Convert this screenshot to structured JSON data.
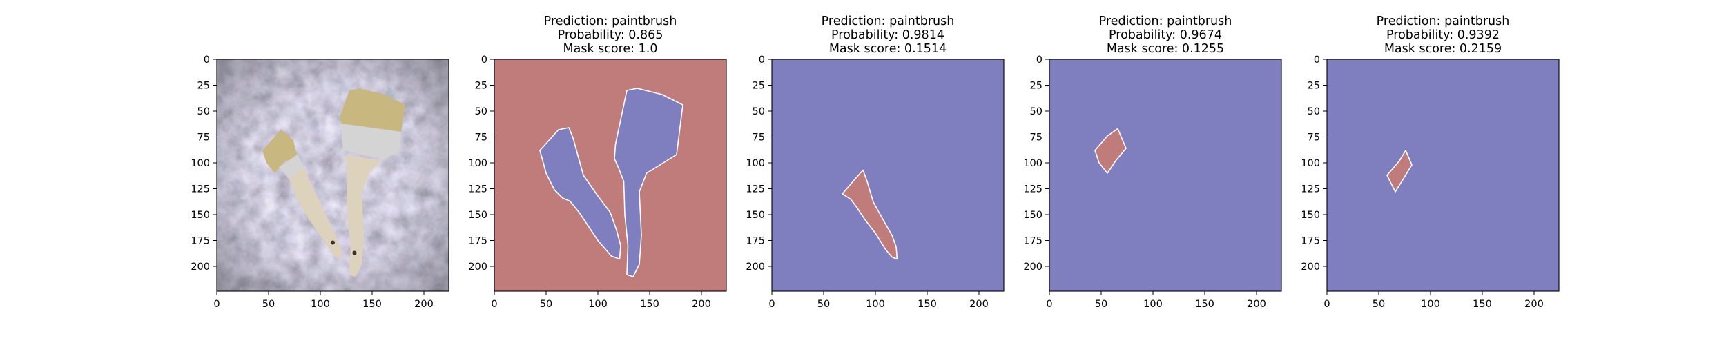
{
  "colors": {
    "mask_fg": "#c07b7b",
    "mask_bg": "#7f7fbf",
    "edge": "#ffffff",
    "axis": "#000000",
    "photo_bg": "#5b5562",
    "bristle": "#c8b880",
    "ferrule": "#d4d4d4",
    "handle": "#ddd2bc"
  },
  "chart_data": [
    {
      "type": "image",
      "title_lines": [],
      "xlim": [
        0,
        224
      ],
      "ylim": [
        224,
        0
      ],
      "xticks": [
        0,
        50,
        100,
        150,
        200
      ],
      "yticks": [
        0,
        25,
        50,
        75,
        100,
        125,
        150,
        175,
        200
      ],
      "content": "input photo of two paintbrushes on marble"
    },
    {
      "type": "mask",
      "title_lines": [
        "Prediction: paintbrush",
        "Probability: 0.865",
        "Mask score: 1.0"
      ],
      "xlim": [
        0,
        224
      ],
      "ylim": [
        224,
        0
      ],
      "xticks": [
        0,
        50,
        100,
        150,
        200
      ],
      "yticks": [
        0,
        25,
        50,
        75,
        100,
        125,
        150,
        175,
        200
      ],
      "background_class": "foreground",
      "regions": [
        [
          [
            44,
            88
          ],
          [
            62,
            68
          ],
          [
            72,
            66
          ],
          [
            76,
            76
          ],
          [
            86,
            112
          ],
          [
            100,
            132
          ],
          [
            112,
            148
          ],
          [
            118,
            165
          ],
          [
            122,
            180
          ],
          [
            121,
            193
          ],
          [
            113,
            190
          ],
          [
            100,
            175
          ],
          [
            90,
            160
          ],
          [
            82,
            148
          ],
          [
            73,
            137
          ],
          [
            66,
            134
          ],
          [
            58,
            126
          ],
          [
            50,
            110
          ]
        ],
        [
          [
            128,
            30
          ],
          [
            138,
            28
          ],
          [
            162,
            34
          ],
          [
            182,
            44
          ],
          [
            176,
            92
          ],
          [
            160,
            102
          ],
          [
            147,
            110
          ],
          [
            140,
            128
          ],
          [
            142,
            170
          ],
          [
            140,
            198
          ],
          [
            134,
            210
          ],
          [
            128,
            208
          ],
          [
            129,
            180
          ],
          [
            126,
            150
          ],
          [
            125,
            118
          ],
          [
            120,
            105
          ],
          [
            116,
            96
          ],
          [
            117,
            82
          ]
        ]
      ]
    },
    {
      "type": "mask",
      "title_lines": [
        "Prediction: paintbrush",
        "Probability: 0.9814",
        "Mask score: 0.1514"
      ],
      "xlim": [
        0,
        224
      ],
      "ylim": [
        224,
        0
      ],
      "xticks": [
        0,
        50,
        100,
        150,
        200
      ],
      "yticks": [
        0,
        25,
        50,
        75,
        100,
        125,
        150,
        175,
        200
      ],
      "background_class": "background",
      "regions": [
        [
          [
            68,
            130
          ],
          [
            80,
            116
          ],
          [
            88,
            107
          ],
          [
            92,
            118
          ],
          [
            98,
            138
          ],
          [
            108,
            156
          ],
          [
            116,
            170
          ],
          [
            120,
            181
          ],
          [
            121,
            193
          ],
          [
            116,
            191
          ],
          [
            110,
            184
          ],
          [
            100,
            168
          ],
          [
            90,
            155
          ],
          [
            82,
            143
          ],
          [
            76,
            135
          ]
        ]
      ]
    },
    {
      "type": "mask",
      "title_lines": [
        "Prediction: paintbrush",
        "Probability: 0.9674",
        "Mask score: 0.1255"
      ],
      "xlim": [
        0,
        224
      ],
      "ylim": [
        224,
        0
      ],
      "xticks": [
        0,
        50,
        100,
        150,
        200
      ],
      "yticks": [
        0,
        25,
        50,
        75,
        100,
        125,
        150,
        175,
        200
      ],
      "background_class": "background",
      "regions": [
        [
          [
            44,
            88
          ],
          [
            56,
            74
          ],
          [
            66,
            67
          ],
          [
            74,
            86
          ],
          [
            64,
            98
          ],
          [
            56,
            110
          ],
          [
            48,
            100
          ]
        ]
      ]
    },
    {
      "type": "mask",
      "title_lines": [
        "Prediction: paintbrush",
        "Probability: 0.9392",
        "Mask score: 0.2159"
      ],
      "xlim": [
        0,
        224
      ],
      "ylim": [
        224,
        0
      ],
      "xticks": [
        0,
        50,
        100,
        150,
        200
      ],
      "yticks": [
        0,
        25,
        50,
        75,
        100,
        125,
        150,
        175,
        200
      ],
      "background_class": "background",
      "regions": [
        [
          [
            58,
            112
          ],
          [
            70,
            98
          ],
          [
            76,
            88
          ],
          [
            82,
            102
          ],
          [
            74,
            115
          ],
          [
            66,
            128
          ]
        ]
      ]
    }
  ]
}
